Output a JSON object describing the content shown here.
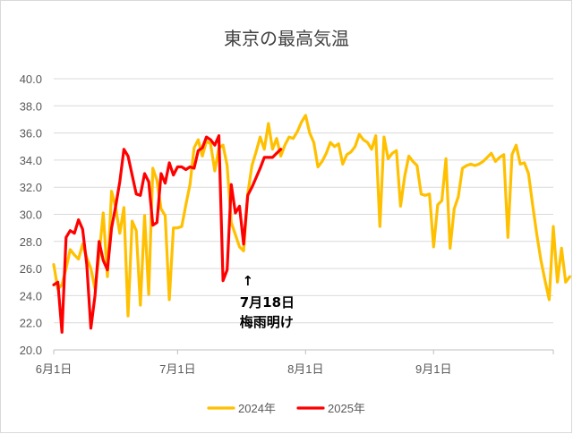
{
  "chart_data": {
    "type": "line",
    "title": "東京の最高気温",
    "xlabel": "",
    "ylabel": "",
    "ylim": [
      20.0,
      40.0
    ],
    "yticks": [
      "20.0",
      "22.0",
      "24.0",
      "26.0",
      "28.0",
      "30.0",
      "32.0",
      "34.0",
      "36.0",
      "38.0",
      "40.0"
    ],
    "xticks": [
      {
        "date": "6/1",
        "label": "6月1日"
      },
      {
        "date": "7/1",
        "label": "7月1日"
      },
      {
        "date": "8/1",
        "label": "8月1日"
      },
      {
        "date": "9/1",
        "label": "9月1日"
      }
    ],
    "xrange": [
      "6/1",
      "9/30"
    ],
    "grid": "horizontal",
    "legend_position": "bottom",
    "annotation": {
      "date": "7/18",
      "arrow": "↑",
      "lines": [
        "7月18日",
        "梅雨明け"
      ]
    },
    "series": [
      {
        "name": "2024年",
        "color": "#FFC000",
        "start": "6/1",
        "values": [
          26.3,
          24.5,
          24.8,
          26.0,
          27.4,
          27.0,
          26.7,
          27.8,
          26.8,
          26.0,
          24.5,
          27.0,
          30.1,
          25.4,
          31.7,
          30.5,
          28.6,
          30.5,
          22.5,
          29.5,
          28.8,
          23.3,
          29.9,
          24.1,
          33.4,
          32.5,
          30.4,
          29.9,
          23.7,
          29.0,
          29.0,
          29.1,
          30.7,
          32.2,
          34.9,
          35.5,
          34.3,
          35.4,
          35.2,
          33.2,
          34.9,
          35.1,
          33.6,
          29.4,
          28.5,
          27.6,
          27.3,
          31.5,
          33.6,
          34.6,
          35.7,
          34.8,
          36.7,
          34.8,
          35.6,
          34.3,
          35.1,
          35.7,
          35.6,
          36.1,
          36.8,
          37.3,
          36.0,
          35.3,
          33.5,
          33.9,
          34.5,
          35.3,
          35.0,
          35.2,
          33.7,
          34.4,
          34.6,
          35.0,
          35.9,
          35.5,
          35.3,
          34.8,
          35.8,
          29.1,
          35.7,
          34.1,
          34.5,
          34.7,
          30.6,
          32.8,
          34.3,
          33.9,
          33.6,
          31.5,
          31.4,
          31.5,
          27.6,
          30.7,
          31.0,
          34.1,
          27.5,
          30.4,
          31.3,
          33.4,
          33.6,
          33.7,
          33.6,
          33.7,
          33.9,
          34.2,
          34.5,
          33.9,
          34.2,
          34.4,
          28.3,
          34.4,
          35.1,
          33.7,
          33.8,
          33.0,
          30.7,
          28.5,
          26.6,
          25.1,
          23.7,
          29.1,
          25.0,
          27.5,
          25.0,
          25.4
        ]
      },
      {
        "name": "2025年",
        "color": "#FF0000",
        "start": "6/1",
        "values": [
          24.8,
          25.0,
          21.3,
          28.3,
          28.8,
          28.6,
          29.6,
          28.9,
          26.3,
          21.6,
          24.0,
          28.0,
          26.6,
          25.9,
          29.0,
          30.6,
          32.4,
          34.8,
          34.3,
          32.9,
          31.5,
          31.4,
          33.0,
          32.4,
          29.2,
          29.4,
          33.0,
          32.3,
          33.8,
          32.9,
          33.5,
          33.5,
          33.3,
          33.5,
          33.4,
          34.7,
          34.9,
          35.7,
          35.5,
          35.1,
          35.8,
          25.1,
          25.9,
          32.2,
          30.1,
          30.6,
          27.8,
          31.4,
          32.0,
          32.7,
          33.4,
          34.2,
          34.2,
          34.2,
          34.5,
          34.8
        ]
      }
    ]
  }
}
